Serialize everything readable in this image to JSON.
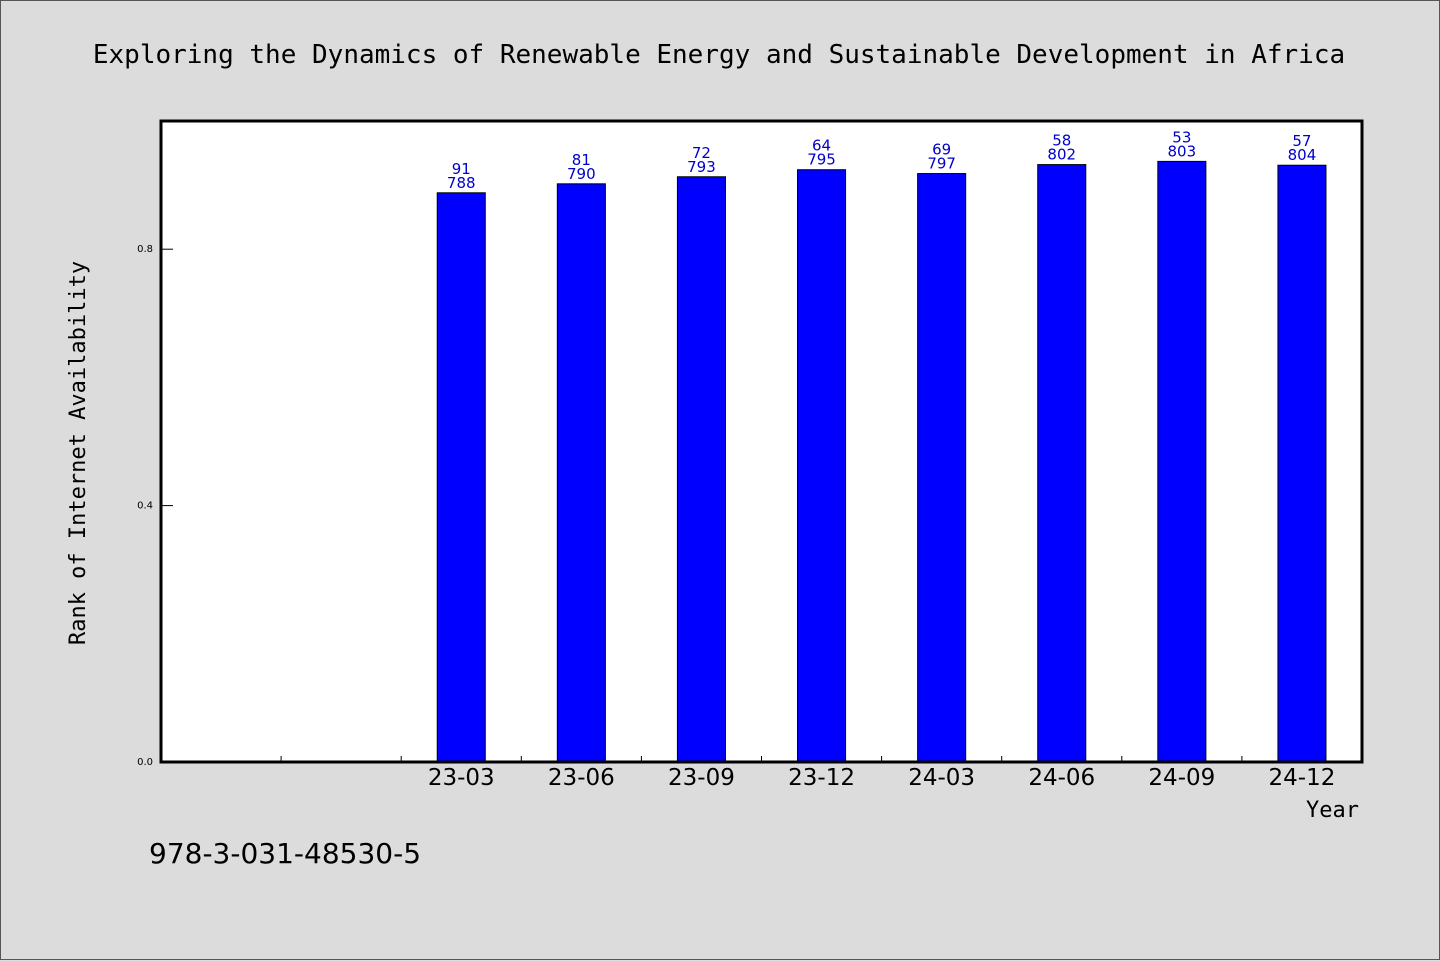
{
  "chart_data": {
    "type": "bar",
    "title": "Exploring the Dynamics of Renewable Energy and Sustainable Development in Africa",
    "xlabel": "Year",
    "ylabel": "Rank of Internet Availability",
    "categories": [
      "",
      "",
      "23-03",
      "23-06",
      "23-09",
      "23-12",
      "24-03",
      "24-06",
      "24-09",
      "24-12"
    ],
    "series": [
      {
        "values": [
          null,
          null,
          0.888,
          0.902,
          0.913,
          0.924,
          0.918,
          0.932,
          0.937,
          0.931
        ],
        "labels_top": [
          "",
          "",
          "91",
          "81",
          "72",
          "64",
          "69",
          "58",
          "53",
          "57"
        ],
        "labels_bottom": [
          "",
          "",
          "788",
          "790",
          "793",
          "795",
          "797",
          "802",
          "803",
          "804"
        ]
      }
    ],
    "yticks": [
      0.0,
      0.4,
      0.8
    ],
    "ytick_labels": [
      "0.0",
      "0.4",
      "0.8"
    ],
    "ylim": [
      0,
      1.0
    ],
    "grid": false,
    "bar_color": "#0000ff",
    "label_color": "#0000cc"
  },
  "footer": {
    "isbn": "978-3-031-48530-5"
  }
}
